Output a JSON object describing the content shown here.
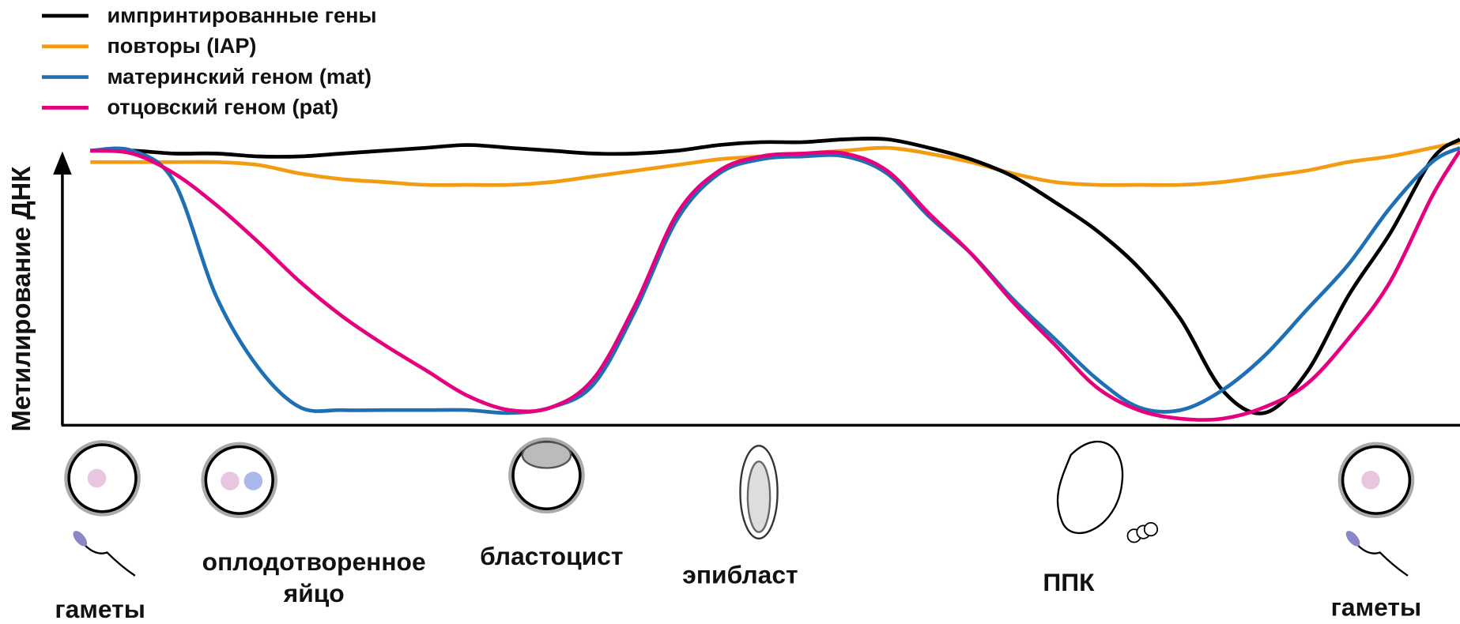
{
  "chart_data": {
    "type": "line",
    "y_label": "Метилирование ДНК",
    "xlim": [
      0,
      100
    ],
    "ylim": [
      0,
      100
    ],
    "x": [
      2,
      5,
      8,
      11,
      14,
      17,
      20,
      23,
      26,
      29,
      32,
      35,
      38,
      41,
      44,
      47,
      50,
      53,
      56,
      59,
      62,
      65,
      68,
      71,
      74,
      77,
      80,
      83,
      86,
      89,
      92,
      95,
      98,
      100
    ],
    "series": [
      {
        "name": "импринтированные гены",
        "color": "#000000",
        "values": [
          96,
          96,
          95,
          95,
          94,
          94,
          95,
          96,
          97,
          98,
          97,
          96,
          95,
          95,
          96,
          98,
          99,
          99,
          100,
          100,
          97,
          93,
          87,
          78,
          68,
          55,
          37,
          12,
          4,
          18,
          45,
          67,
          93,
          100
        ]
      },
      {
        "name": "повторы (IAP)",
        "color": "#f39c12",
        "values": [
          92,
          92,
          92,
          92,
          91,
          88,
          86,
          85,
          84,
          84,
          84,
          85,
          87,
          89,
          91,
          93,
          94,
          95,
          96,
          97,
          95,
          92,
          88,
          85,
          84,
          84,
          84,
          85,
          87,
          89,
          92,
          94,
          97,
          99
        ]
      },
      {
        "name": "материнский геном (mat)",
        "color": "#1f6fb5",
        "values": [
          96,
          96,
          85,
          45,
          20,
          6,
          5,
          5,
          5,
          5,
          4,
          6,
          14,
          40,
          72,
          88,
          93,
          94,
          94,
          88,
          73,
          60,
          44,
          30,
          16,
          6,
          5,
          12,
          24,
          40,
          56,
          76,
          92,
          97
        ]
      },
      {
        "name": "отцовский геном (pat)",
        "color": "#e6007e",
        "values": [
          96,
          95,
          88,
          77,
          64,
          50,
          38,
          28,
          19,
          10,
          5,
          6,
          16,
          42,
          74,
          89,
          94,
          95,
          95,
          89,
          74,
          60,
          43,
          28,
          13,
          5,
          2,
          2,
          6,
          14,
          30,
          50,
          80,
          96
        ]
      }
    ],
    "stages": [
      {
        "label": [
          "гаметы"
        ],
        "x": 2.7
      },
      {
        "label": [
          "оплодотворенное",
          "яйцо"
        ],
        "x": 18
      },
      {
        "label": [
          "бластоцист"
        ],
        "x": 35
      },
      {
        "label": [
          "эпибласт"
        ],
        "x": 48.5
      },
      {
        "label": [
          "ППК"
        ],
        "x": 72
      },
      {
        "label": [
          "гаметы"
        ],
        "x": 94
      }
    ]
  }
}
